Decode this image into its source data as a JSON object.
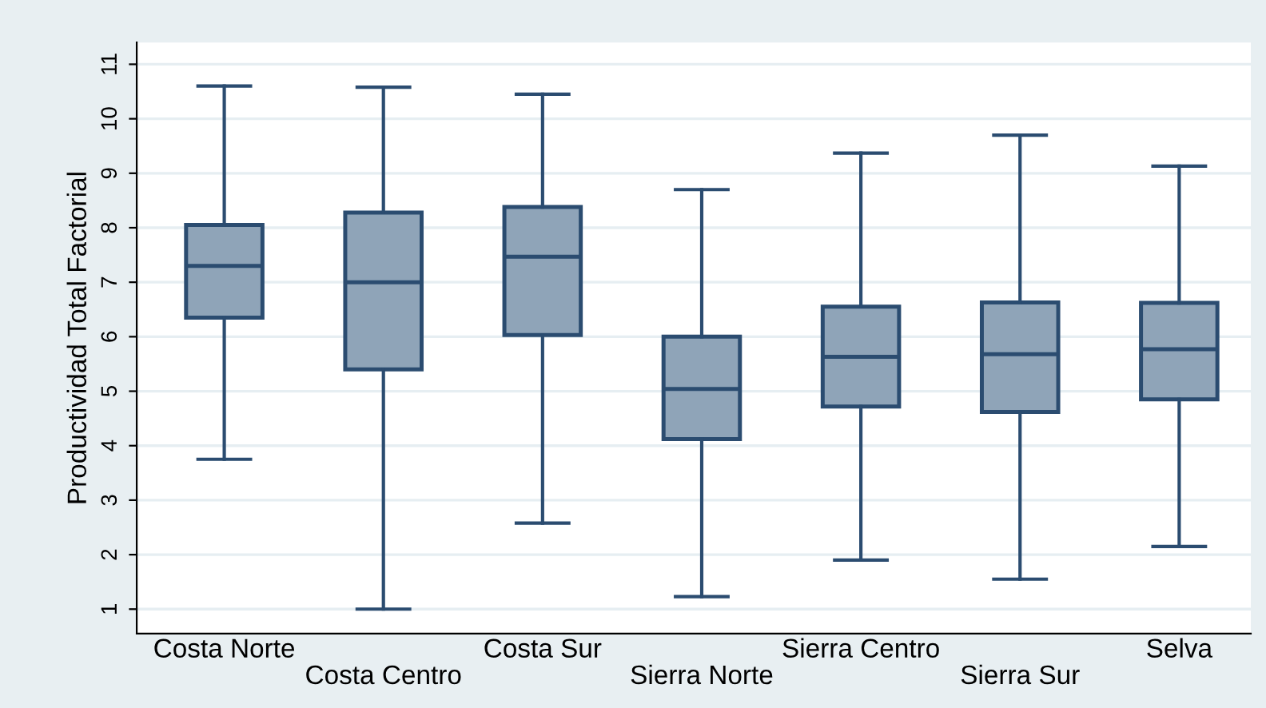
{
  "chart_data": {
    "type": "box",
    "ylabel": "Productividad Total Factorial",
    "categories": [
      "Costa Norte",
      "Costa Centro",
      "Costa Sur",
      "Sierra Norte",
      "Sierra Centro",
      "Sierra Sur",
      "Selva"
    ],
    "boxes": [
      {
        "low": 3.75,
        "q1": 6.35,
        "median": 7.3,
        "q3": 8.05,
        "high": 10.6
      },
      {
        "low": 1.0,
        "q1": 5.4,
        "median": 7.0,
        "q3": 8.28,
        "high": 10.58
      },
      {
        "low": 2.58,
        "q1": 6.03,
        "median": 7.47,
        "q3": 8.38,
        "high": 10.45
      },
      {
        "low": 1.23,
        "q1": 4.12,
        "median": 5.04,
        "q3": 6.0,
        "high": 8.7
      },
      {
        "low": 1.9,
        "q1": 4.72,
        "median": 5.63,
        "q3": 6.55,
        "high": 9.37
      },
      {
        "low": 1.55,
        "q1": 4.62,
        "median": 5.68,
        "q3": 6.63,
        "high": 9.7
      },
      {
        "low": 2.15,
        "q1": 4.85,
        "median": 5.77,
        "q3": 6.62,
        "high": 9.13
      }
    ],
    "color": "#8fa4b8",
    "ylim": [
      0.55,
      11.4
    ],
    "yticks": [
      1,
      2,
      3,
      4,
      5,
      6,
      7,
      8,
      9,
      10,
      11
    ],
    "grid": "y"
  }
}
